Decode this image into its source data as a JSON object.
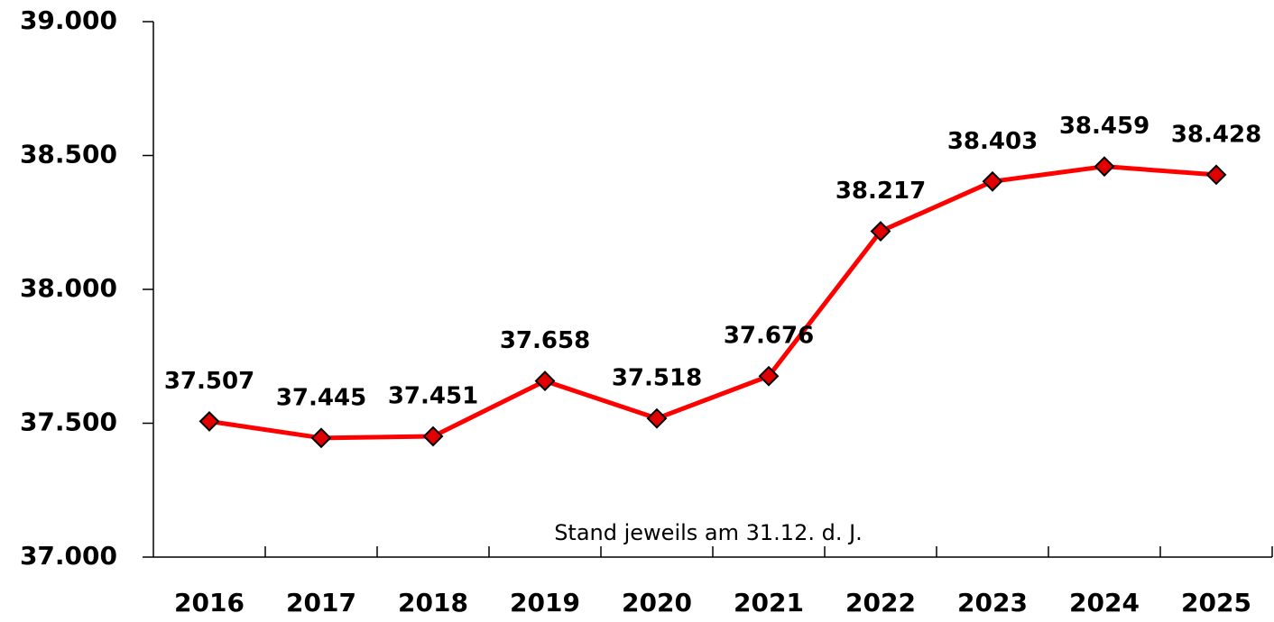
{
  "chart_data": {
    "type": "line",
    "categories": [
      "2016",
      "2017",
      "2018",
      "2019",
      "2020",
      "2021",
      "2022",
      "2023",
      "2024",
      "2025"
    ],
    "series": [
      {
        "color": "#ff0000",
        "marker_color": "#e00000",
        "values": [
          37507,
          37445,
          37451,
          37658,
          37518,
          37676,
          38217,
          38403,
          38459,
          38428
        ],
        "value_labels": [
          "37.507",
          "37.445",
          "37.451",
          "37.658",
          "37.518",
          "37.676",
          "38.217",
          "38.403",
          "38.459",
          "38.428"
        ]
      }
    ],
    "ylim": [
      37000,
      39000
    ],
    "yticks": [
      {
        "value": 37000,
        "label": "37.000"
      },
      {
        "value": 37500,
        "label": "37.500"
      },
      {
        "value": 38000,
        "label": "38.000"
      },
      {
        "value": 38500,
        "label": "38.500"
      },
      {
        "value": 39000,
        "label": "39.000"
      }
    ],
    "annotation": "Stand jeweils am 31.12. d. J.",
    "grid": false
  }
}
